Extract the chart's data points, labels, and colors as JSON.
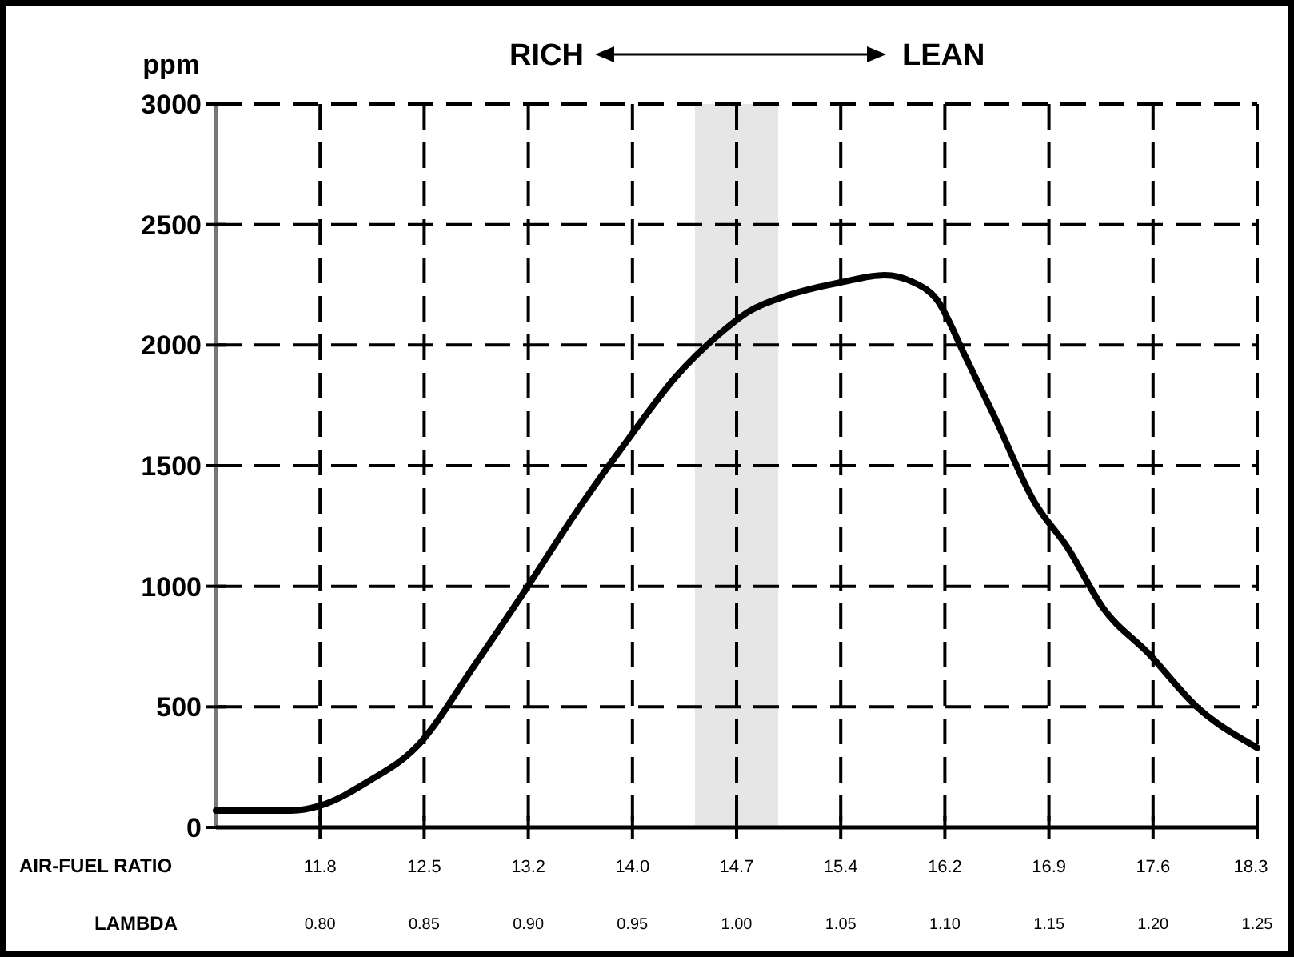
{
  "chart_data": {
    "type": "line",
    "ylabel": "ppm",
    "xlabel": "LAMBDA",
    "x2label": "AIR-FUEL RATIO",
    "annotations": [
      "RICH",
      "LEAN"
    ],
    "xlim": [
      0.75,
      1.25
    ],
    "xticks": [
      {
        "value": 0.8,
        "label": "0.80"
      },
      0.85,
      {
        "value": 0.9,
        "label": "0.90"
      },
      0.95,
      {
        "value": 1.0,
        "label": "1.00"
      },
      1.05,
      {
        "value": 1.1,
        "label": "1.10"
      },
      1.15,
      {
        "value": 1.2,
        "label": "1.20"
      },
      1.25
    ],
    "x2lim": [
      11.025,
      18.375
    ],
    "x2ticks": [
      {
        "value": 11.76,
        "label": "11.8"
      },
      {
        "value": 12.495,
        "label": "12.5"
      },
      {
        "value": 13.23,
        "label": "13.2"
      },
      {
        "value": 13.965,
        "label": "14.0"
      },
      {
        "value": 14.7,
        "label": "14.7"
      },
      {
        "value": 15.435,
        "label": "15.4"
      },
      {
        "value": 16.17,
        "label": "16.2"
      },
      {
        "value": 16.905,
        "label": "16.9"
      },
      {
        "value": 17.64,
        "label": "17.6"
      },
      {
        "value": 18.33,
        "label": "18.3"
      }
    ],
    "ylim": [
      0,
      3000
    ],
    "yticks": [
      0,
      500,
      1000,
      1500,
      2000,
      2500,
      3000
    ],
    "grid": true,
    "marker": "none",
    "line_style": "solid",
    "bands": [
      {
        "axis": "x",
        "from": 0.98,
        "to": 1.02,
        "color": "#e6e6e6"
      }
    ],
    "series": [
      {
        "color": "#000000",
        "x": [
          0.75,
          0.786,
          0.8,
          0.823,
          0.847,
          0.874,
          0.899,
          0.924,
          0.948,
          0.971,
          0.991,
          1.006,
          1.026,
          1.05,
          1.071,
          1.085,
          1.096,
          1.11,
          1.124,
          1.143,
          1.159,
          1.176,
          1.198,
          1.221,
          1.248,
          1.25
        ],
        "values": [
          70,
          70,
          90,
          190,
          340,
          670,
          990,
          1320,
          1610,
          1870,
          2040,
          2140,
          2210,
          2260,
          2290,
          2260,
          2190,
          1950,
          1700,
          1350,
          1160,
          910,
          720,
          500,
          340,
          330
        ]
      }
    ]
  }
}
